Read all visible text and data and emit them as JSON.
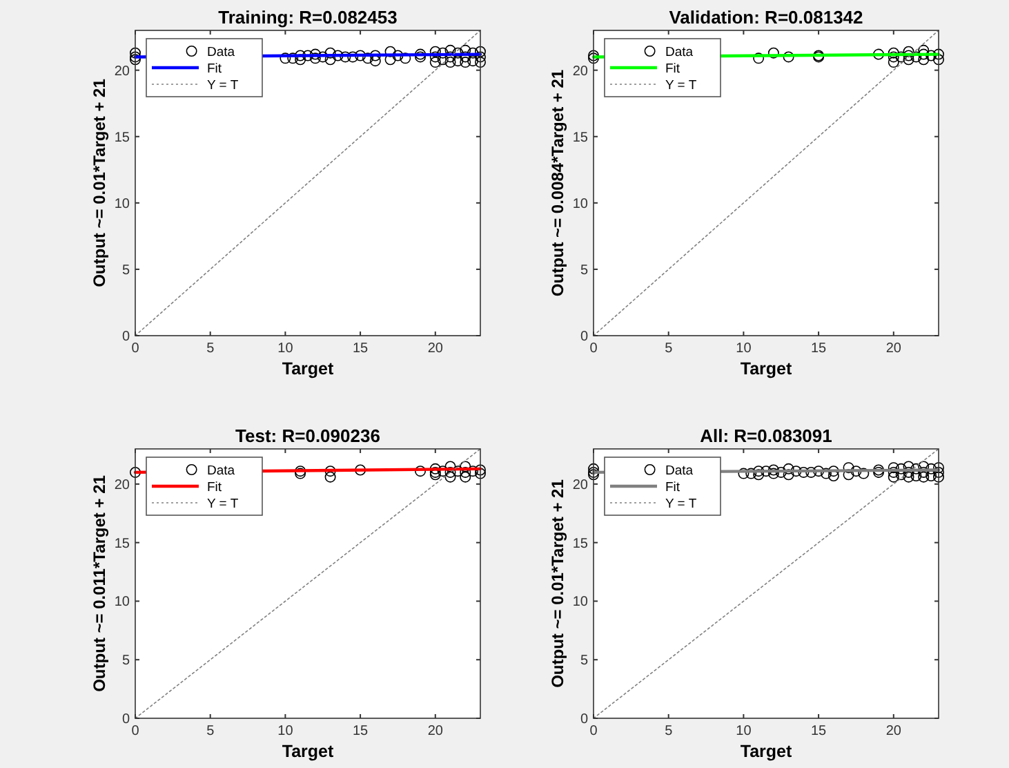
{
  "chart_data": [
    {
      "type": "scatter",
      "title": "Training: R=0.082453",
      "xlabel": "Target",
      "ylabel": "Output ~= 0.01*Target + 21",
      "xlim": [
        0,
        23
      ],
      "ylim": [
        0,
        23
      ],
      "xticks": [
        0,
        5,
        10,
        15,
        20
      ],
      "yticks": [
        0,
        5,
        10,
        15,
        20
      ],
      "grid": false,
      "legend": "top left",
      "series": [
        {
          "name": "Data",
          "marker": "circle",
          "color": "#000000",
          "x": [
            0,
            0,
            0,
            10,
            10.5,
            11,
            11,
            11.5,
            12,
            12,
            12.5,
            13,
            13,
            13.5,
            14,
            14.5,
            15,
            15.5,
            16,
            16,
            17,
            17,
            17.5,
            18,
            19,
            19,
            20,
            20,
            20,
            20.5,
            20.5,
            21,
            21,
            21,
            21.5,
            21.5,
            22,
            22,
            22,
            22.5,
            22.5,
            23,
            23,
            23
          ],
          "values": [
            21,
            21.3,
            20.8,
            20.9,
            20.9,
            21.1,
            20.8,
            21.1,
            21.2,
            20.9,
            21,
            21.3,
            20.8,
            21.1,
            21,
            21,
            21.1,
            20.9,
            20.7,
            21.1,
            21.4,
            20.8,
            21.1,
            20.9,
            21,
            21.2,
            20.6,
            21,
            21.4,
            20.8,
            21.3,
            20.6,
            21,
            21.5,
            20.7,
            21.3,
            20.6,
            21,
            21.5,
            20.7,
            21.3,
            20.6,
            21,
            21.4
          ]
        },
        {
          "name": "Fit",
          "type": "line",
          "marker": "none",
          "line_style": "solid",
          "color": "#0000ff",
          "x": [
            0,
            23
          ],
          "values": [
            21,
            21.2
          ]
        },
        {
          "name": "Y = T",
          "type": "line",
          "marker": "none",
          "line_style": "dotted",
          "color": "#808080",
          "x": [
            0,
            23
          ],
          "values": [
            0,
            23
          ]
        }
      ]
    },
    {
      "type": "scatter",
      "title": "Validation: R=0.081342",
      "xlabel": "Target",
      "ylabel": "Output ~= 0.0084*Target + 21",
      "xlim": [
        0,
        23
      ],
      "ylim": [
        0,
        23
      ],
      "xticks": [
        0,
        5,
        10,
        15,
        20
      ],
      "yticks": [
        0,
        5,
        10,
        15,
        20
      ],
      "grid": false,
      "legend": "top left",
      "series": [
        {
          "name": "Data",
          "marker": "circle",
          "color": "#000000",
          "x": [
            0,
            0,
            11,
            12,
            13,
            15,
            15,
            19,
            20,
            20,
            20,
            20.5,
            21,
            21,
            21,
            21.5,
            22,
            22,
            22,
            22.5,
            23,
            23
          ],
          "values": [
            20.9,
            21.1,
            20.9,
            21.3,
            21,
            21.1,
            21,
            21.2,
            20.6,
            21,
            21.3,
            21,
            20.8,
            21.1,
            21.4,
            21,
            20.8,
            21.2,
            21.5,
            21.1,
            20.8,
            21.2
          ]
        },
        {
          "name": "Fit",
          "type": "line",
          "marker": "none",
          "line_style": "solid",
          "color": "#00ff00",
          "x": [
            0,
            23
          ],
          "values": [
            21,
            21.2
          ]
        },
        {
          "name": "Y = T",
          "type": "line",
          "marker": "none",
          "line_style": "dotted",
          "color": "#808080",
          "x": [
            0,
            23
          ],
          "values": [
            0,
            23
          ]
        }
      ]
    },
    {
      "type": "scatter",
      "title": "Test: R=0.090236",
      "xlabel": "Target",
      "ylabel": "Output ~= 0.011*Target + 21",
      "xlim": [
        0,
        23
      ],
      "ylim": [
        0,
        23
      ],
      "xticks": [
        0,
        5,
        10,
        15,
        20
      ],
      "yticks": [
        0,
        5,
        10,
        15,
        20
      ],
      "grid": false,
      "legend": "top left",
      "series": [
        {
          "name": "Data",
          "marker": "circle",
          "color": "#000000",
          "x": [
            0,
            11,
            11,
            13,
            13,
            15,
            19,
            20,
            20,
            20,
            20.5,
            21,
            21,
            21,
            21.5,
            22,
            22,
            22,
            22.5,
            23,
            23
          ],
          "values": [
            21,
            21.1,
            20.9,
            21.1,
            20.6,
            21.2,
            21.1,
            20.8,
            21,
            21.3,
            21.1,
            20.6,
            21,
            21.5,
            21.1,
            20.6,
            21,
            21.5,
            21.1,
            20.9,
            21.2
          ]
        },
        {
          "name": "Fit",
          "type": "line",
          "marker": "none",
          "line_style": "solid",
          "color": "#ff0000",
          "x": [
            0,
            23
          ],
          "values": [
            21,
            21.3
          ]
        },
        {
          "name": "Y = T",
          "type": "line",
          "marker": "none",
          "line_style": "dotted",
          "color": "#808080",
          "x": [
            0,
            23
          ],
          "values": [
            0,
            23
          ]
        }
      ]
    },
    {
      "type": "scatter",
      "title": "All: R=0.083091",
      "xlabel": "Target",
      "ylabel": "Output ~= 0.01*Target + 21",
      "xlim": [
        0,
        23
      ],
      "ylim": [
        0,
        23
      ],
      "xticks": [
        0,
        5,
        10,
        15,
        20
      ],
      "yticks": [
        0,
        5,
        10,
        15,
        20
      ],
      "grid": false,
      "legend": "top left",
      "series": [
        {
          "name": "Data",
          "marker": "circle",
          "color": "#000000",
          "x": [
            0,
            0,
            0,
            10,
            10.5,
            11,
            11,
            11.5,
            12,
            12,
            12.5,
            13,
            13,
            13.5,
            14,
            14.5,
            15,
            15.5,
            16,
            16,
            17,
            17,
            17.5,
            18,
            19,
            19,
            20,
            20,
            20,
            20.5,
            20.5,
            21,
            21,
            21,
            21.5,
            21.5,
            22,
            22,
            22,
            22.5,
            22.5,
            23,
            23,
            23
          ],
          "values": [
            21,
            21.3,
            20.8,
            20.9,
            20.9,
            21.1,
            20.8,
            21.1,
            21.2,
            20.9,
            21,
            21.3,
            20.8,
            21.1,
            21,
            21,
            21.1,
            20.9,
            20.7,
            21.1,
            21.4,
            20.8,
            21.1,
            20.9,
            21,
            21.2,
            20.6,
            21,
            21.4,
            20.8,
            21.3,
            20.6,
            21,
            21.5,
            20.7,
            21.3,
            20.6,
            21,
            21.5,
            20.7,
            21.3,
            20.6,
            21,
            21.4
          ]
        },
        {
          "name": "Fit",
          "type": "line",
          "marker": "none",
          "line_style": "solid",
          "color": "#808080",
          "x": [
            0,
            23
          ],
          "values": [
            21,
            21.2
          ]
        },
        {
          "name": "Y = T",
          "type": "line",
          "marker": "none",
          "line_style": "dotted",
          "color": "#808080",
          "x": [
            0,
            23
          ],
          "values": [
            0,
            23
          ]
        }
      ]
    }
  ]
}
